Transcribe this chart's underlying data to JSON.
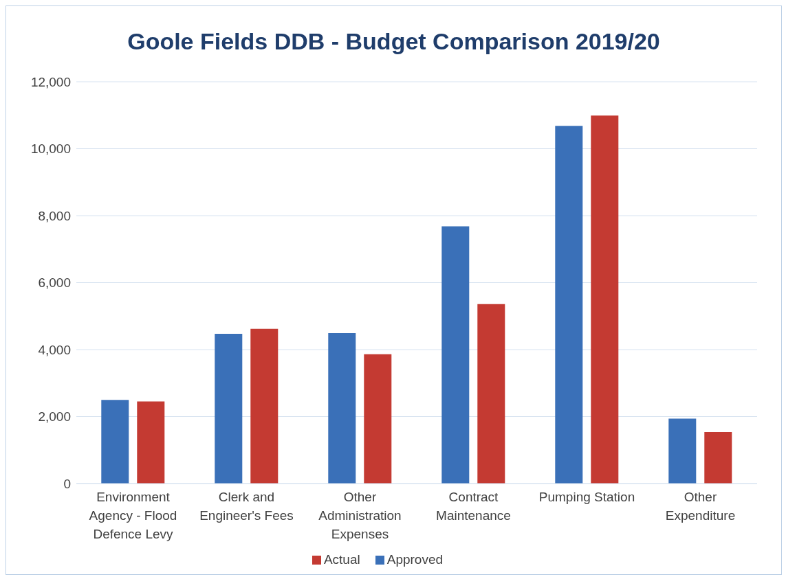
{
  "chart_data": {
    "type": "bar",
    "title": "Goole Fields DDB - Budget Comparison 2019/20",
    "categories": [
      "Environment Agency - Flood Defence Levy",
      "Clerk and Engineer's Fees",
      "Other Administration Expenses",
      "Contract Maintenance",
      "Pumping Station",
      "Other Expenditure"
    ],
    "series": [
      {
        "name": "Approved",
        "color": "#3a70b8",
        "values": [
          2500,
          4470,
          4490,
          7680,
          10680,
          1940
        ]
      },
      {
        "name": "Actual",
        "color": "#c43a32",
        "values": [
          2450,
          4620,
          3860,
          5360,
          10990,
          1540
        ]
      }
    ],
    "ylim": [
      0,
      12000
    ],
    "yticks": [
      {
        "value": 0,
        "label": "0"
      },
      {
        "value": 2000,
        "label": "2,000"
      },
      {
        "value": 4000,
        "label": "4,000"
      },
      {
        "value": 6000,
        "label": "6,000"
      },
      {
        "value": 8000,
        "label": "8,000"
      },
      {
        "value": 10000,
        "label": "10,000"
      },
      {
        "value": 12000,
        "label": "12,000"
      }
    ],
    "grid": "y",
    "legend": "bottom"
  }
}
